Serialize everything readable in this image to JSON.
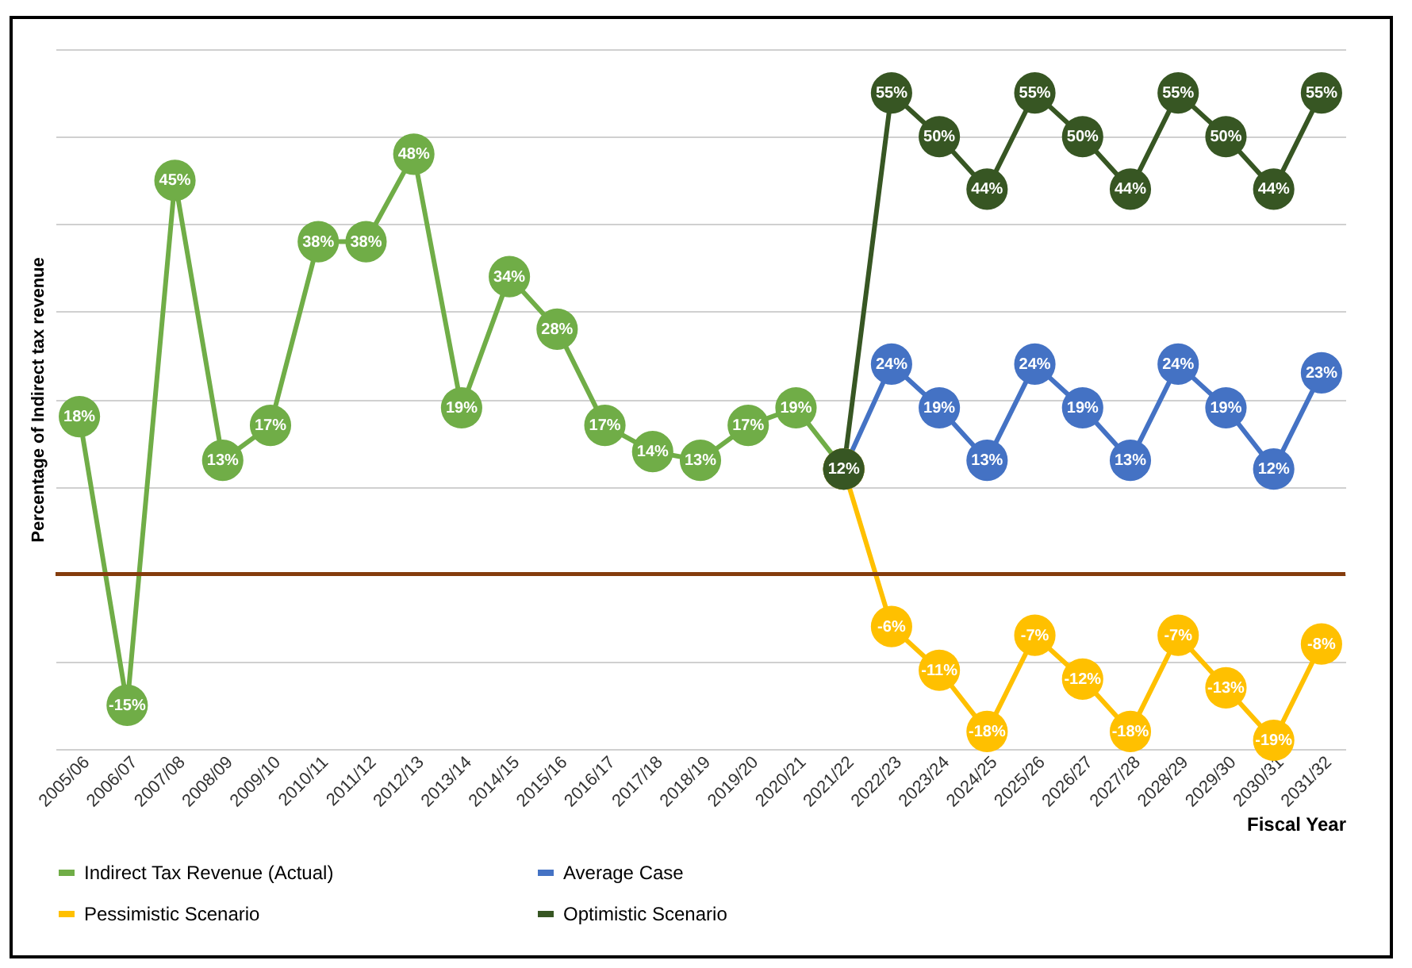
{
  "chart_data": {
    "type": "line",
    "xlabel": "Fiscal Year",
    "ylabel": "Percentage of Indirect tax revenue",
    "categories": [
      "2005/06",
      "2006/07",
      "2007/08",
      "2008/09",
      "2009/10",
      "2010/11",
      "2011/12",
      "2012/13",
      "2013/14",
      "2014/15",
      "2015/16",
      "2016/17",
      "2017/18",
      "2018/19",
      "2019/20",
      "2020/21",
      "2021/22",
      "2022/23",
      "2023/24",
      "2024/25",
      "2025/26",
      "2026/27",
      "2027/28",
      "2028/29",
      "2029/30",
      "2030/31",
      "2031/32"
    ],
    "series": [
      {
        "name": "Indirect Tax Revenue (Actual)",
        "color": "#70ad47",
        "values": [
          18,
          -15,
          45,
          13,
          17,
          38,
          38,
          48,
          19,
          34,
          28,
          17,
          14,
          13,
          17,
          19,
          12,
          null,
          null,
          null,
          null,
          null,
          null,
          null,
          null,
          null,
          null
        ],
        "value_labels": [
          "18%",
          "-15%",
          "45%",
          "13%",
          "17%",
          "38%",
          "38%",
          "48%",
          "19%",
          "34%",
          "28%",
          "17%",
          "14%",
          "13%",
          "17%",
          "19%",
          null,
          null,
          null,
          null,
          null,
          null,
          null,
          null,
          null,
          null,
          null
        ]
      },
      {
        "name": "Average  Case",
        "color": "#4472c4",
        "values": [
          null,
          null,
          null,
          null,
          null,
          null,
          null,
          null,
          null,
          null,
          null,
          null,
          null,
          null,
          null,
          null,
          12,
          24,
          19,
          13,
          24,
          19,
          13,
          24,
          19,
          12,
          23
        ],
        "value_labels": [
          null,
          null,
          null,
          null,
          null,
          null,
          null,
          null,
          null,
          null,
          null,
          null,
          null,
          null,
          null,
          null,
          null,
          "24%",
          "19%",
          "13%",
          "24%",
          "19%",
          "13%",
          "24%",
          "19%",
          "12%",
          "23%"
        ]
      },
      {
        "name": "Pessimistic Scenario",
        "color": "#ffc000",
        "values": [
          null,
          null,
          null,
          null,
          null,
          null,
          null,
          null,
          null,
          null,
          null,
          null,
          null,
          null,
          null,
          null,
          12,
          -6,
          -11,
          -18,
          -7,
          -12,
          -18,
          -7,
          -13,
          -19,
          -8
        ],
        "value_labels": [
          null,
          null,
          null,
          null,
          null,
          null,
          null,
          null,
          null,
          null,
          null,
          null,
          null,
          null,
          null,
          null,
          null,
          "-6%",
          "-11%",
          "-18%",
          "-7%",
          "-12%",
          "-18%",
          "-7%",
          "-13%",
          "-19%",
          "-8%"
        ]
      },
      {
        "name": "Optimistic Scenario",
        "color": "#375623",
        "values": [
          null,
          null,
          null,
          null,
          null,
          null,
          null,
          null,
          null,
          null,
          null,
          null,
          null,
          null,
          null,
          null,
          12,
          55,
          50,
          44,
          55,
          50,
          44,
          55,
          50,
          44,
          55
        ],
        "value_labels": [
          null,
          null,
          null,
          null,
          null,
          null,
          null,
          null,
          null,
          null,
          null,
          null,
          null,
          null,
          null,
          null,
          "12%",
          "55%",
          "50%",
          "44%",
          "55%",
          "50%",
          "44%",
          "55%",
          "50%",
          "44%",
          "55%"
        ]
      }
    ],
    "ylim": [
      -20,
      60
    ],
    "yticks": [
      {
        "value": -20,
        "label": null
      },
      {
        "value": -10,
        "label": null
      },
      {
        "value": 0,
        "label": null
      },
      {
        "value": 10,
        "label": null
      },
      {
        "value": 20,
        "label": null
      },
      {
        "value": 30,
        "label": null
      },
      {
        "value": 40,
        "label": null
      },
      {
        "value": 50,
        "label": null
      },
      {
        "value": 60,
        "label": null
      }
    ],
    "grid": "y",
    "legend": "bottom",
    "marker": "circle",
    "line_style": "solid",
    "ref_lines": [
      {
        "axis": "y",
        "value": 0,
        "color": "#843c0c"
      }
    ]
  }
}
